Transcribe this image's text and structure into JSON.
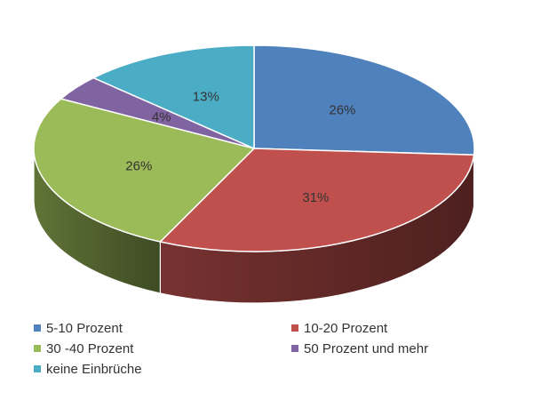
{
  "chart_data": {
    "type": "pie",
    "style": "3d",
    "title": "",
    "categories": [
      "5-10 Prozent",
      "10-20 Prozent",
      "30 -40 Prozent",
      "50 Prozent und mehr",
      "keine Einbrüche"
    ],
    "values": [
      26,
      31,
      26,
      4,
      13
    ],
    "value_labels": [
      "26%",
      "31%",
      "26%",
      "4%",
      "13%"
    ],
    "colors": [
      "#4f81bd",
      "#c0504d",
      "#9bbb59",
      "#8064a2",
      "#4bacc6"
    ],
    "legend_position": "bottom",
    "start_angle": "12 o'clock",
    "direction": "clockwise"
  }
}
